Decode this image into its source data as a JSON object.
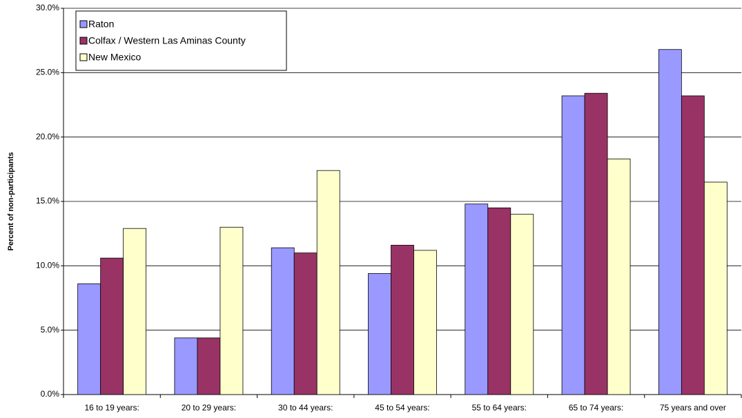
{
  "chart_data": {
    "type": "bar",
    "y_label": "Percent of non-participants",
    "categories": [
      "16 to 19 years:",
      "20 to 29 years:",
      "30 to 44 years:",
      "45 to 54 years:",
      "55 to 64 years:",
      "65 to 74 years:",
      "75 years and over"
    ],
    "series": [
      {
        "name": "Raton",
        "color": "#9999ff",
        "values": [
          8.6,
          4.4,
          11.4,
          9.4,
          14.8,
          23.2,
          26.8
        ]
      },
      {
        "name": "Colfax / Western Las Aminas County",
        "color": "#993366",
        "values": [
          10.6,
          4.4,
          11.0,
          11.6,
          14.5,
          23.4,
          23.2
        ]
      },
      {
        "name": "New Mexico",
        "color": "#ffffcc",
        "values": [
          12.9,
          13.0,
          17.4,
          11.2,
          14.0,
          18.3,
          16.5
        ]
      }
    ],
    "ylim": [
      0,
      30
    ],
    "yticks": [
      {
        "value": 0,
        "label": "0.0%"
      },
      {
        "value": 5,
        "label": "5.0%"
      },
      {
        "value": 10,
        "label": "10.0%"
      },
      {
        "value": 15,
        "label": "15.0%"
      },
      {
        "value": 20,
        "label": "20.0%"
      },
      {
        "value": 25,
        "label": "25.0%"
      },
      {
        "value": 30,
        "label": "30.0%"
      }
    ],
    "grid": true
  }
}
